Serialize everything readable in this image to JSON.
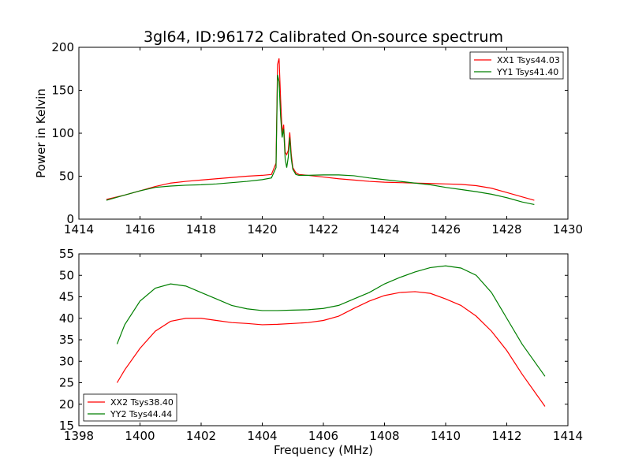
{
  "figure_title": "3gl64, ID:96172 Calibrated On-source spectrum",
  "colors": {
    "red": "#ff0000",
    "green": "#007f00"
  },
  "chart_data": [
    {
      "type": "line",
      "ylabel": "Power in Kelvin",
      "xlabel": "",
      "xlim": [
        1414,
        1430
      ],
      "ylim": [
        0,
        200
      ],
      "xticks": [
        1414,
        1416,
        1418,
        1420,
        1422,
        1424,
        1426,
        1428,
        1430
      ],
      "yticks": [
        0,
        50,
        100,
        150,
        200
      ],
      "xtick_labels": [
        "1414",
        "1416",
        "1418",
        "1420",
        "1422",
        "1424",
        "1426",
        "1428",
        "1430"
      ],
      "ytick_labels": [
        "0",
        "50",
        "100",
        "150",
        "200"
      ],
      "legend_position": "top-right",
      "series": [
        {
          "name": "XX1 Tsys44.03",
          "color": "#ff0000",
          "x": [
            1414.9,
            1415.5,
            1416.0,
            1416.5,
            1417.0,
            1417.5,
            1418.0,
            1418.5,
            1419.0,
            1419.5,
            1420.0,
            1420.3,
            1420.45,
            1420.5,
            1420.55,
            1420.6,
            1420.65,
            1420.7,
            1420.75,
            1420.8,
            1420.85,
            1420.9,
            1420.95,
            1421.0,
            1421.1,
            1421.2,
            1421.5,
            1422.0,
            1422.5,
            1423.0,
            1423.5,
            1424.0,
            1424.5,
            1425.0,
            1425.5,
            1426.0,
            1426.5,
            1427.0,
            1427.5,
            1428.0,
            1428.5,
            1428.9
          ],
          "y": [
            23,
            28,
            33,
            38,
            42,
            44,
            45.5,
            47,
            48.5,
            50,
            51,
            52,
            65,
            180,
            187,
            140,
            100,
            110,
            78,
            75,
            80,
            101,
            75,
            60,
            54,
            52,
            51,
            49,
            47,
            45.5,
            44,
            43,
            42.5,
            42,
            41.5,
            41,
            40.5,
            39,
            36,
            31,
            26,
            22
          ]
        },
        {
          "name": "YY1 Tsys41.40",
          "color": "#007f00",
          "x": [
            1414.9,
            1415.5,
            1416.0,
            1416.5,
            1417.0,
            1417.5,
            1418.0,
            1418.5,
            1419.0,
            1419.5,
            1420.0,
            1420.3,
            1420.45,
            1420.5,
            1420.55,
            1420.6,
            1420.65,
            1420.7,
            1420.75,
            1420.8,
            1420.85,
            1420.9,
            1420.95,
            1421.0,
            1421.1,
            1421.2,
            1421.5,
            1422.0,
            1422.5,
            1423.0,
            1423.5,
            1424.0,
            1424.5,
            1425.0,
            1425.5,
            1426.0,
            1426.5,
            1427.0,
            1427.5,
            1428.0,
            1428.5,
            1428.9
          ],
          "y": [
            22,
            28,
            33,
            37,
            38.5,
            39.5,
            40,
            41,
            42.5,
            44,
            46,
            48,
            60,
            168,
            160,
            120,
            95,
            105,
            70,
            60,
            72,
            95,
            70,
            58,
            52,
            51,
            51,
            51.5,
            51.5,
            50.5,
            48,
            46,
            44,
            42,
            40,
            37,
            34.5,
            32,
            29,
            25,
            20,
            17
          ]
        }
      ]
    },
    {
      "type": "line",
      "xlabel": "Frequency (MHz)",
      "ylabel": "",
      "xlim": [
        1398,
        1414
      ],
      "ylim": [
        15,
        55
      ],
      "xticks": [
        1398,
        1400,
        1402,
        1404,
        1406,
        1408,
        1410,
        1412,
        1414
      ],
      "yticks": [
        15,
        20,
        25,
        30,
        35,
        40,
        45,
        50,
        55
      ],
      "xtick_labels": [
        "1398",
        "1400",
        "1402",
        "1404",
        "1406",
        "1408",
        "1410",
        "1412",
        "1414"
      ],
      "ytick_labels": [
        "15",
        "20",
        "25",
        "30",
        "35",
        "40",
        "45",
        "50",
        "55"
      ],
      "legend_position": "bottom-left",
      "series": [
        {
          "name": "XX2 Tsys38.40",
          "color": "#ff0000",
          "x": [
            1399.25,
            1399.5,
            1400.0,
            1400.5,
            1401.0,
            1401.5,
            1402.0,
            1402.5,
            1403.0,
            1403.5,
            1404.0,
            1404.5,
            1405.0,
            1405.5,
            1406.0,
            1406.5,
            1407.0,
            1407.5,
            1408.0,
            1408.5,
            1409.0,
            1409.5,
            1410.0,
            1410.5,
            1411.0,
            1411.5,
            1412.0,
            1412.5,
            1413.0,
            1413.25
          ],
          "y": [
            25,
            28,
            33,
            37,
            39.3,
            40,
            40,
            39.5,
            39,
            38.8,
            38.5,
            38.6,
            38.8,
            39,
            39.5,
            40.5,
            42.3,
            44,
            45.3,
            46,
            46.2,
            45.8,
            44.5,
            43,
            40.5,
            37,
            32.5,
            27,
            22,
            19.5
          ]
        },
        {
          "name": "YY2 Tsys44.44",
          "color": "#007f00",
          "x": [
            1399.25,
            1399.5,
            1400.0,
            1400.5,
            1401.0,
            1401.5,
            1402.0,
            1402.5,
            1403.0,
            1403.5,
            1404.0,
            1404.5,
            1405.0,
            1405.5,
            1406.0,
            1406.5,
            1407.0,
            1407.5,
            1408.0,
            1408.5,
            1409.0,
            1409.5,
            1410.0,
            1410.5,
            1411.0,
            1411.5,
            1412.0,
            1412.5,
            1413.0,
            1413.25
          ],
          "y": [
            34,
            38.5,
            44,
            47,
            48,
            47.5,
            46,
            44.5,
            43,
            42.2,
            41.8,
            41.8,
            41.9,
            42,
            42.3,
            43,
            44.5,
            46,
            48,
            49.5,
            50.8,
            51.8,
            52.2,
            51.7,
            50,
            46,
            40,
            34,
            29,
            26.5
          ]
        }
      ]
    }
  ]
}
